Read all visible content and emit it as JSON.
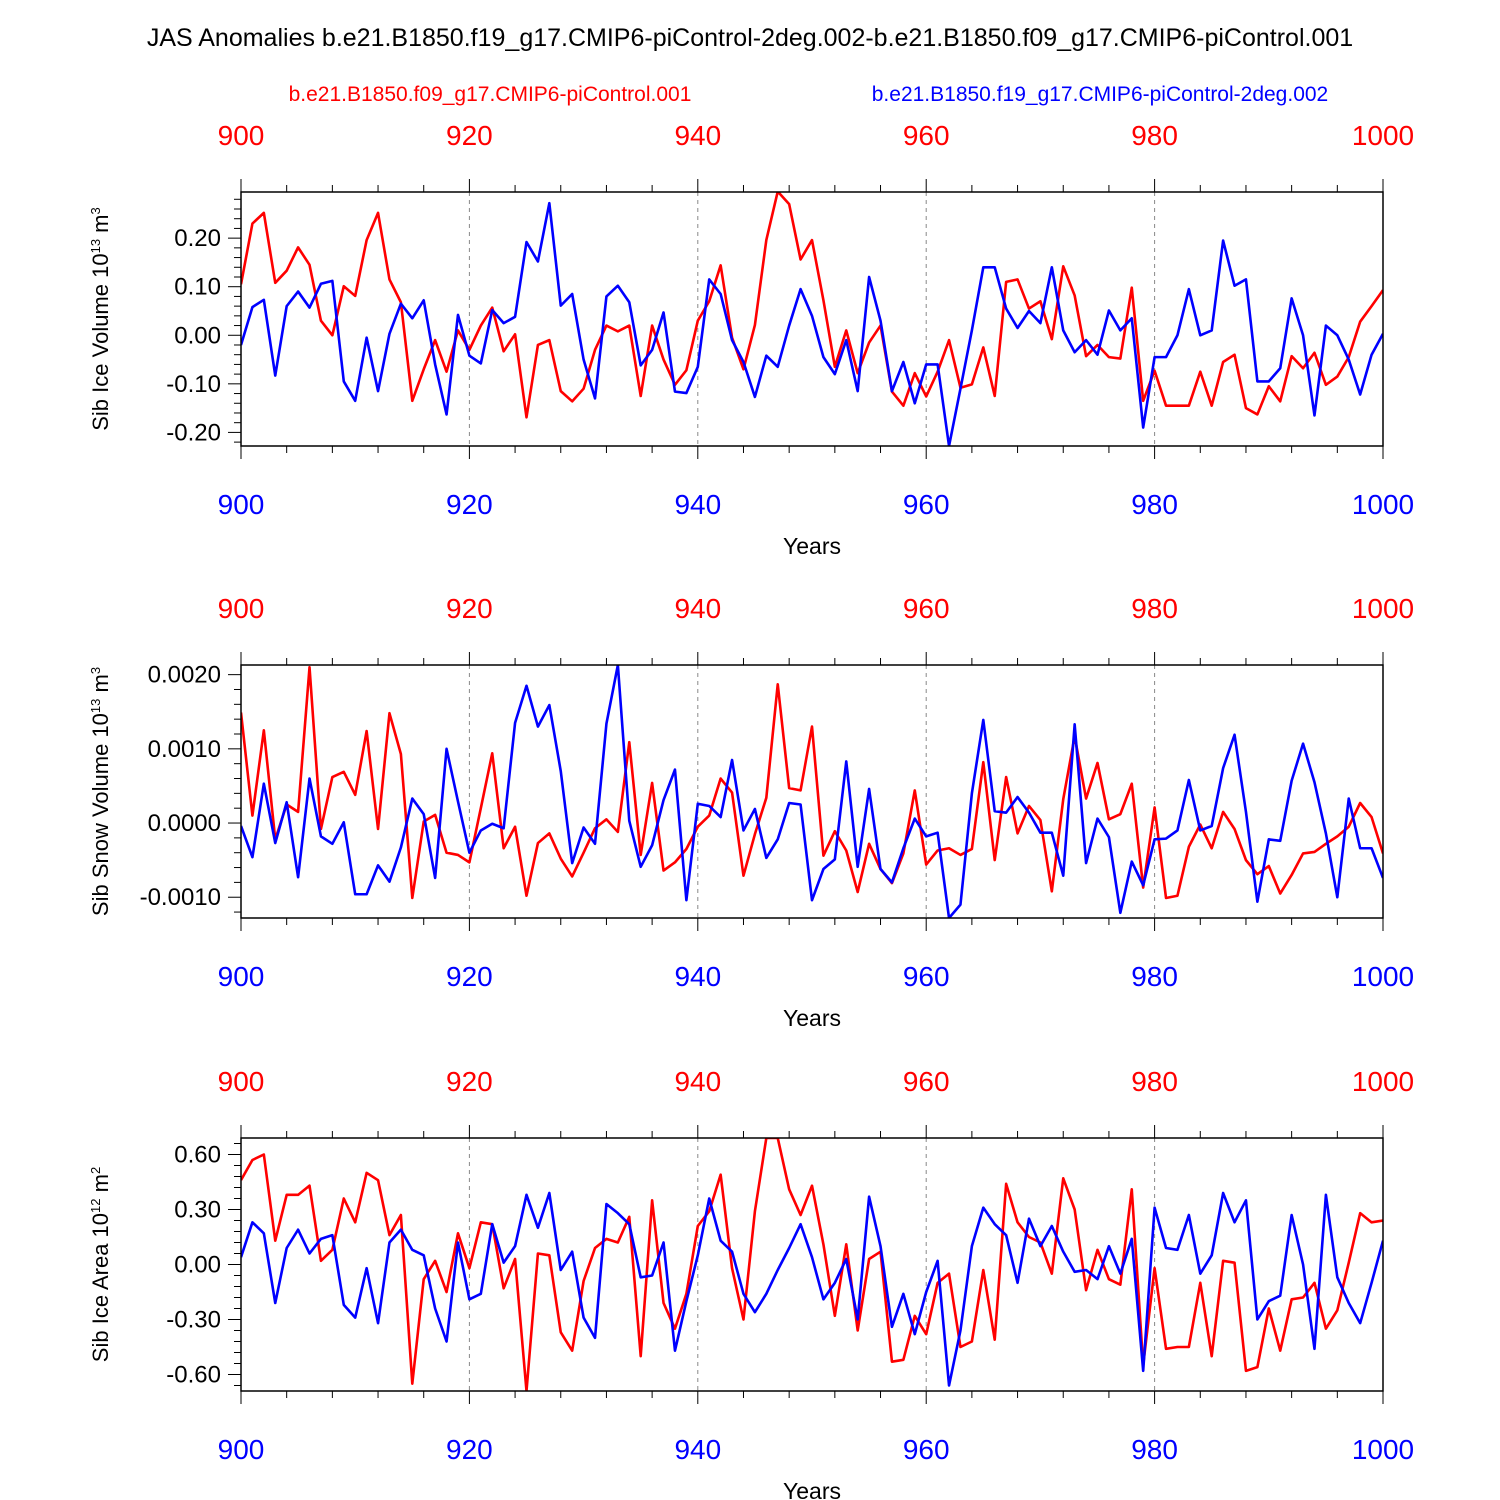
{
  "figure_title": "JAS Anomalies b.e21.B1850.f19_g17.CMIP6-piControl-2deg.002-b.e21.B1850.f09_g17.CMIP6-piControl.001",
  "legend": {
    "red_label": "b.e21.B1850.f09_g17.CMIP6-piControl.001",
    "blue_label": "b.e21.B1850.f19_g17.CMIP6-piControl-2deg.002"
  },
  "colors": {
    "red": "#ff0000",
    "blue": "#0000ff",
    "black": "#000000",
    "grid": "#888888"
  },
  "chart_data": [
    {
      "type": "line",
      "ylabel": "Sib Ice Volume",
      "yunit": "10",
      "yunit_exp": "13",
      "yunit_suffix": "m",
      "yunit_suffix_exp": "3",
      "xlabel": "Years",
      "xlim": [
        900,
        1000
      ],
      "ylim": [
        -0.228,
        0.295
      ],
      "yticks": [
        -0.2,
        -0.1,
        0.0,
        0.1,
        0.2
      ],
      "ytick_labels": [
        "-0.20",
        "-0.10",
        "0.00",
        "0.10",
        "0.20"
      ],
      "xticks": [
        900,
        920,
        940,
        960,
        980,
        1000
      ],
      "xtick_labels": [
        "900",
        "920",
        "940",
        "960",
        "980",
        "1000"
      ],
      "series": [
        {
          "name": "b.e21.B1850.f09_g17.CMIP6-piControl.001",
          "color": "red",
          "x_start": 900,
          "values": [
            0.105,
            0.23,
            0.252,
            0.108,
            0.133,
            0.181,
            0.145,
            0.03,
            0.0,
            0.101,
            0.081,
            0.196,
            0.252,
            0.115,
            0.068,
            -0.135,
            -0.07,
            -0.01,
            -0.075,
            0.01,
            -0.03,
            0.02,
            0.057,
            -0.033,
            0.002,
            -0.169,
            -0.02,
            -0.01,
            -0.115,
            -0.136,
            -0.11,
            -0.03,
            0.02,
            0.008,
            0.02,
            -0.125,
            0.02,
            -0.05,
            -0.102,
            -0.072,
            0.03,
            0.07,
            0.144,
            -0.005,
            -0.07,
            0.021,
            0.196,
            0.296,
            0.27,
            0.156,
            0.196,
            0.072,
            -0.065,
            0.01,
            -0.078,
            -0.015,
            0.02,
            -0.116,
            -0.145,
            -0.078,
            -0.126,
            -0.075,
            -0.01,
            -0.108,
            -0.101,
            -0.025,
            -0.125,
            0.11,
            0.115,
            0.055,
            0.07,
            -0.008,
            0.142,
            0.082,
            -0.043,
            -0.02,
            -0.045,
            -0.048,
            0.098,
            -0.135,
            -0.073,
            -0.145,
            -0.145,
            -0.145,
            -0.075,
            -0.145,
            -0.055,
            -0.04,
            -0.15,
            -0.163,
            -0.105,
            -0.136,
            -0.043,
            -0.068,
            -0.036,
            -0.102,
            -0.085,
            -0.045,
            0.028,
            0.06,
            0.093
          ]
        },
        {
          "name": "b.e21.B1850.f19_g17.CMIP6-piControl-2deg.002",
          "color": "blue",
          "x_start": 900,
          "values": [
            -0.02,
            0.058,
            0.073,
            -0.083,
            0.06,
            0.09,
            0.057,
            0.106,
            0.112,
            -0.095,
            -0.135,
            -0.005,
            -0.115,
            0.003,
            0.065,
            0.035,
            0.072,
            -0.06,
            -0.163,
            0.042,
            -0.042,
            -0.058,
            0.052,
            0.025,
            0.038,
            0.192,
            0.152,
            0.272,
            0.061,
            0.085,
            -0.05,
            -0.13,
            0.08,
            0.102,
            0.068,
            -0.062,
            -0.03,
            0.047,
            -0.116,
            -0.119,
            -0.065,
            0.115,
            0.085,
            -0.01,
            -0.055,
            -0.127,
            -0.042,
            -0.065,
            0.02,
            0.095,
            0.04,
            -0.045,
            -0.08,
            -0.01,
            -0.115,
            0.12,
            0.03,
            -0.115,
            -0.055,
            -0.14,
            -0.06,
            -0.06,
            -0.228,
            -0.11,
            0.01,
            0.14,
            0.14,
            0.055,
            0.015,
            0.05,
            0.025,
            0.14,
            0.01,
            -0.035,
            -0.01,
            -0.04,
            0.051,
            0.01,
            0.035,
            -0.19,
            -0.045,
            -0.045,
            0.0,
            0.095,
            0.0,
            0.01,
            0.195,
            0.102,
            0.115,
            -0.095,
            -0.095,
            -0.068,
            0.076,
            0.0,
            -0.165,
            0.02,
            0.0,
            -0.05,
            -0.122,
            -0.04,
            0.003
          ]
        }
      ]
    },
    {
      "type": "line",
      "ylabel": "Sib Snow Volume",
      "yunit": "10",
      "yunit_exp": "13",
      "yunit_suffix": "m",
      "yunit_suffix_exp": "3",
      "xlabel": "Years",
      "xlim": [
        900,
        1000
      ],
      "ylim": [
        -0.00128,
        0.00213
      ],
      "yticks": [
        -0.001,
        0.0,
        0.001,
        0.002
      ],
      "ytick_labels": [
        "-0.0010",
        "0.0000",
        "0.0010",
        "0.0020"
      ],
      "xticks": [
        900,
        920,
        940,
        960,
        980,
        1000
      ],
      "xtick_labels": [
        "900",
        "920",
        "940",
        "960",
        "980",
        "1000"
      ],
      "series": [
        {
          "name": "b.e21.B1850.f09_g17.CMIP6-piControl.001",
          "color": "red",
          "x_start": 900,
          "values": [
            0.00149,
            0.0001,
            0.00125,
            -0.00022,
            0.00025,
            0.00015,
            0.0021,
            -8e-05,
            0.00062,
            0.00069,
            0.00038,
            0.00124,
            -8e-05,
            0.00148,
            0.00093,
            -0.00101,
            2e-05,
            0.00011,
            -0.0004,
            -0.00043,
            -0.00053,
            0.0002,
            0.00094,
            -0.00034,
            -5e-05,
            -0.00098,
            -0.00027,
            -0.00014,
            -0.00048,
            -0.00072,
            -0.0004,
            -7e-05,
            5e-05,
            -0.00012,
            0.00109,
            -0.00043,
            0.00054,
            -0.00064,
            -0.00053,
            -0.00035,
            -5e-05,
            0.0001,
            0.0006,
            0.00041,
            -0.00071,
            -0.00015,
            0.00034,
            0.00187,
            0.00047,
            0.00044,
            0.0013,
            -0.00044,
            -0.00011,
            -0.00037,
            -0.00093,
            -0.00028,
            -0.00062,
            -0.00081,
            -0.00041,
            0.00044,
            -0.00056,
            -0.00037,
            -0.00034,
            -0.00043,
            -0.00035,
            0.00082,
            -0.0005,
            0.00062,
            -0.00014,
            0.00023,
            4e-05,
            -0.00092,
            0.00032,
            0.00117,
            0.00033,
            0.00081,
            5e-05,
            0.00012,
            0.00053,
            -0.00087,
            0.00021,
            -0.00101,
            -0.00098,
            -0.00032,
            -2e-05,
            -0.00034,
            0.00015,
            -8e-05,
            -0.0005,
            -0.00069,
            -0.00058,
            -0.00095,
            -0.0007,
            -0.00041,
            -0.00039,
            -0.00028,
            -0.00018,
            -5e-05,
            0.00027,
            8e-05,
            -0.00041
          ]
        },
        {
          "name": "b.e21.B1850.f19_g17.CMIP6-piControl-2deg.002",
          "color": "blue",
          "x_start": 900,
          "values": [
            -4e-05,
            -0.00046,
            0.00053,
            -0.00027,
            0.00028,
            -0.00073,
            0.0006,
            -0.00018,
            -0.00028,
            1e-05,
            -0.00096,
            -0.00096,
            -0.00057,
            -0.00079,
            -0.00033,
            0.00033,
            0.00012,
            -0.00074,
            0.001,
            0.00029,
            -0.0004,
            -0.0001,
            -1e-05,
            -7e-05,
            0.00135,
            0.00185,
            0.0013,
            0.00159,
            0.0007,
            -0.00054,
            -6e-05,
            -0.00028,
            0.00134,
            0.00213,
            3e-05,
            -0.00059,
            -0.0003,
            0.00031,
            0.00072,
            -0.00104,
            0.00026,
            0.00023,
            8e-05,
            0.00085,
            -0.0001,
            0.00019,
            -0.00047,
            -0.00022,
            0.00027,
            0.00025,
            -0.00104,
            -0.00062,
            -0.00049,
            0.00083,
            -0.00059,
            0.00046,
            -0.00062,
            -0.0008,
            -0.00034,
            6e-05,
            -0.00018,
            -0.00013,
            -0.00128,
            -0.0011,
            0.0004,
            0.00139,
            0.00016,
            0.00014,
            0.00035,
            0.00014,
            -0.00013,
            -0.00013,
            -0.00071,
            0.00133,
            -0.00054,
            6e-05,
            -0.00019,
            -0.00121,
            -0.00052,
            -0.00084,
            -0.00022,
            -0.00021,
            -0.0001,
            0.00058,
            -0.0001,
            -4e-05,
            0.00074,
            0.00119,
            0.00015,
            -0.00106,
            -0.00022,
            -0.00024,
            0.00057,
            0.00107,
            0.00055,
            -0.00014,
            -0.001,
            0.00033,
            -0.00034,
            -0.00034,
            -0.00074
          ]
        }
      ]
    },
    {
      "type": "line",
      "ylabel": "Sib Ice Area",
      "yunit": "10",
      "yunit_exp": "12",
      "yunit_suffix": "m",
      "yunit_suffix_exp": "2",
      "xlabel": "Years",
      "xlim": [
        900,
        1000
      ],
      "ylim": [
        -0.69,
        0.69
      ],
      "yticks": [
        -0.6,
        -0.3,
        0.0,
        0.3,
        0.6
      ],
      "ytick_labels": [
        "-0.60",
        "-0.30",
        "0.00",
        "0.30",
        "0.60"
      ],
      "xticks": [
        900,
        920,
        940,
        960,
        980,
        1000
      ],
      "xtick_labels": [
        "900",
        "920",
        "940",
        "960",
        "980",
        "1000"
      ],
      "series": [
        {
          "name": "b.e21.B1850.f09_g17.CMIP6-piControl.001",
          "color": "red",
          "x_start": 900,
          "values": [
            0.46,
            0.57,
            0.6,
            0.13,
            0.38,
            0.38,
            0.43,
            0.02,
            0.08,
            0.36,
            0.23,
            0.5,
            0.46,
            0.16,
            0.27,
            -0.65,
            -0.08,
            0.02,
            -0.15,
            0.17,
            -0.02,
            0.23,
            0.22,
            -0.13,
            0.03,
            -0.69,
            0.06,
            0.05,
            -0.37,
            -0.47,
            -0.09,
            0.09,
            0.14,
            0.12,
            0.26,
            -0.5,
            0.35,
            -0.21,
            -0.35,
            -0.16,
            0.21,
            0.29,
            0.49,
            -0.02,
            -0.3,
            0.29,
            0.69,
            0.69,
            0.41,
            0.27,
            0.43,
            0.11,
            -0.28,
            0.11,
            -0.36,
            0.03,
            0.07,
            -0.53,
            -0.52,
            -0.28,
            -0.38,
            -0.1,
            -0.05,
            -0.45,
            -0.42,
            -0.03,
            -0.41,
            0.44,
            0.23,
            0.15,
            0.12,
            -0.05,
            0.47,
            0.3,
            -0.14,
            0.08,
            -0.08,
            -0.11,
            0.41,
            -0.55,
            -0.02,
            -0.46,
            -0.45,
            -0.45,
            -0.1,
            -0.5,
            0.02,
            0.01,
            -0.58,
            -0.56,
            -0.24,
            -0.47,
            -0.19,
            -0.18,
            -0.1,
            -0.35,
            -0.25,
            0.01,
            0.28,
            0.23,
            0.24
          ]
        },
        {
          "name": "b.e21.B1850.f19_g17.CMIP6-piControl-2deg.002",
          "color": "blue",
          "x_start": 900,
          "values": [
            0.04,
            0.23,
            0.17,
            -0.21,
            0.09,
            0.19,
            0.06,
            0.14,
            0.16,
            -0.22,
            -0.29,
            -0.02,
            -0.32,
            0.12,
            0.19,
            0.08,
            0.05,
            -0.24,
            -0.42,
            0.12,
            -0.19,
            -0.16,
            0.22,
            0.01,
            0.1,
            0.38,
            0.2,
            0.39,
            -0.03,
            0.07,
            -0.29,
            -0.4,
            0.33,
            0.28,
            0.22,
            -0.07,
            -0.06,
            0.12,
            -0.47,
            -0.2,
            0.05,
            0.36,
            0.13,
            0.07,
            -0.16,
            -0.26,
            -0.16,
            -0.03,
            0.09,
            0.22,
            0.04,
            -0.19,
            -0.1,
            0.03,
            -0.3,
            0.37,
            0.1,
            -0.34,
            -0.16,
            -0.38,
            -0.15,
            0.02,
            -0.66,
            -0.36,
            0.1,
            0.31,
            0.22,
            0.16,
            -0.1,
            0.25,
            0.1,
            0.21,
            0.07,
            -0.04,
            -0.03,
            -0.08,
            0.1,
            -0.05,
            0.14,
            -0.58,
            0.31,
            0.09,
            0.08,
            0.27,
            -0.05,
            0.05,
            0.39,
            0.23,
            0.35,
            -0.3,
            -0.2,
            -0.17,
            0.27,
            0.0,
            -0.46,
            0.38,
            -0.07,
            -0.21,
            -0.32,
            -0.1,
            0.13
          ]
        }
      ]
    }
  ]
}
